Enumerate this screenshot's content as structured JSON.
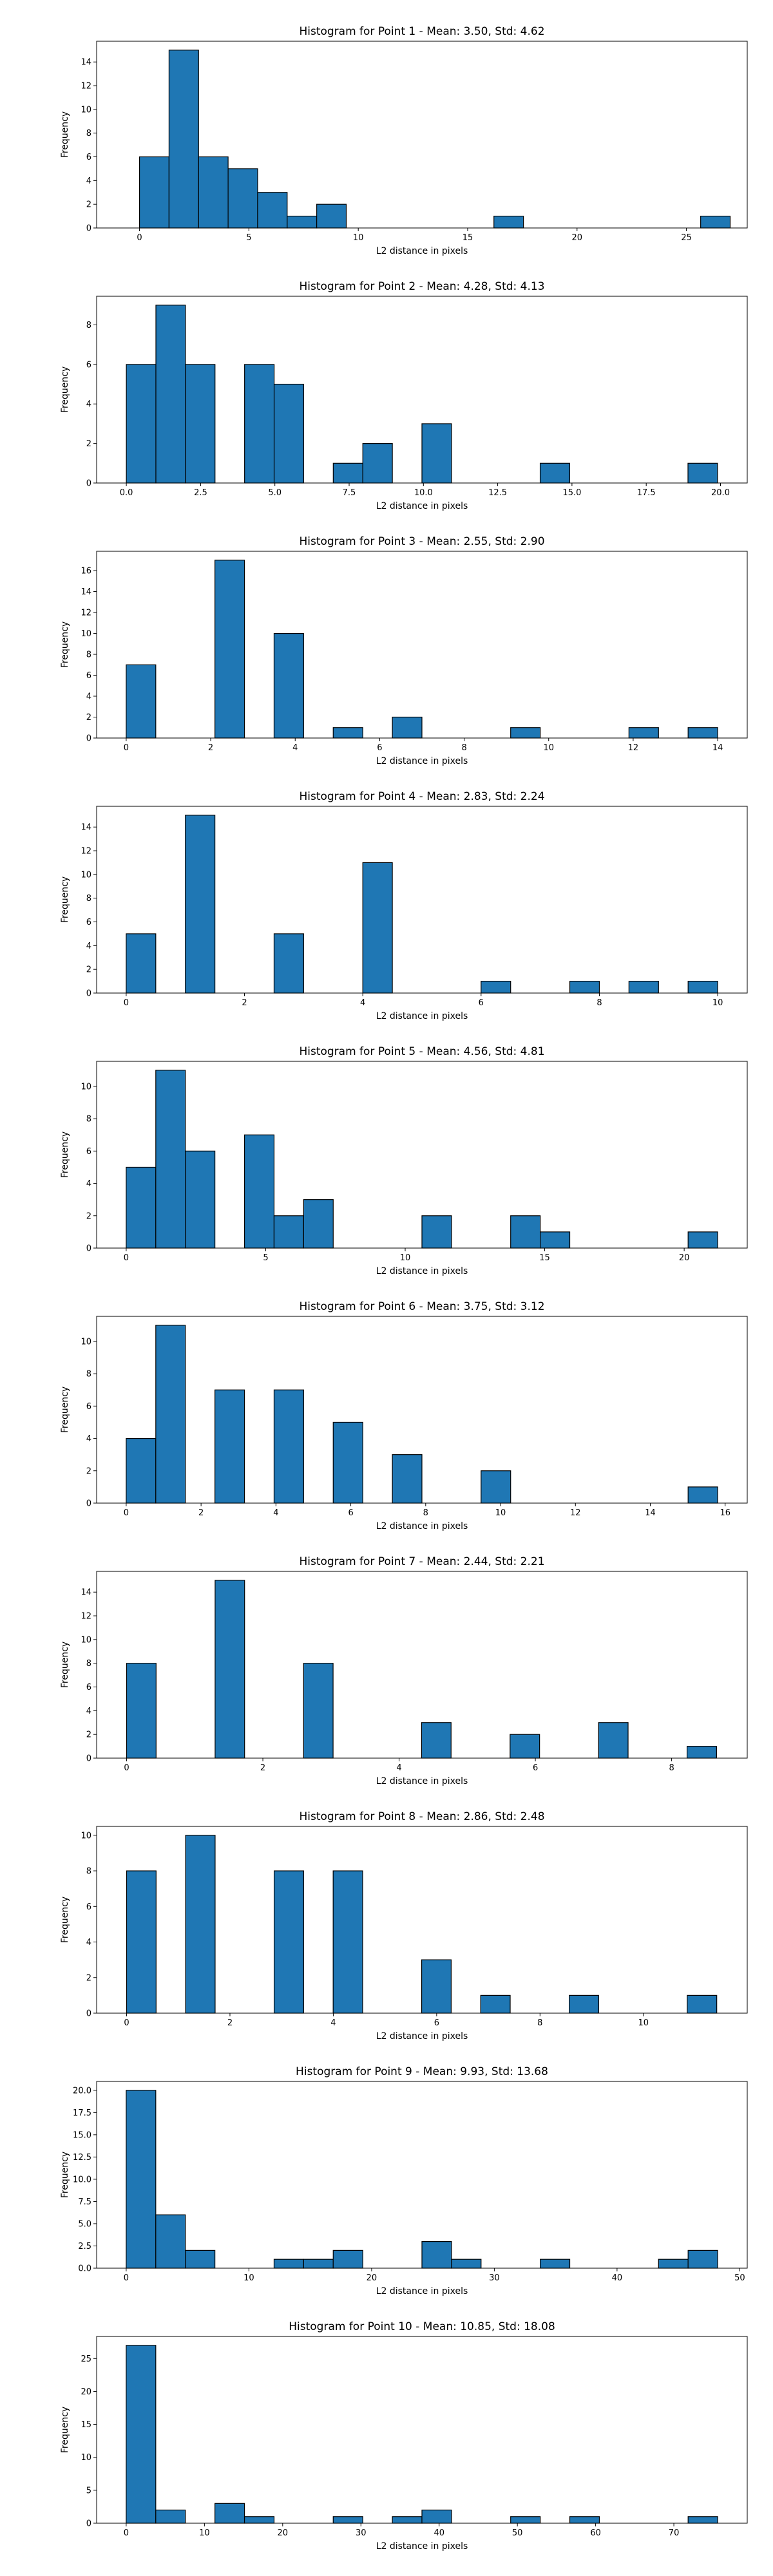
{
  "figure": {
    "background": "#ffffff",
    "bar_color": "#1f77b4",
    "edge_color": "#000000"
  },
  "chart_data": [
    {
      "type": "bar",
      "title": "Histogram for Point 1 - Mean: 3.50, Std: 4.62",
      "xlabel": "L2 distance in pixels",
      "ylabel": "Frequency",
      "xlim": [
        -1.96,
        27.78
      ],
      "ylim": [
        0,
        15.75
      ],
      "xticks": [
        0,
        5,
        10,
        15,
        20,
        25
      ],
      "xtick_labels": [
        "0",
        "5",
        "10",
        "15",
        "20",
        "25"
      ],
      "yticks": [
        0,
        2,
        4,
        6,
        8,
        10,
        12,
        14
      ],
      "bin_start": 0.0,
      "bin_width": 1.35,
      "counts": [
        6,
        15,
        6,
        5,
        3,
        1,
        2,
        0,
        0,
        0,
        0,
        0,
        1,
        0,
        0,
        0,
        0,
        0,
        0,
        1
      ]
    },
    {
      "type": "bar",
      "title": "Histogram for Point 2 - Mean: 4.28, Std: 4.13",
      "xlabel": "L2 distance in pixels",
      "ylabel": "Frequency",
      "xlim": [
        -1.0,
        20.9
      ],
      "ylim": [
        0,
        9.45
      ],
      "xticks": [
        0,
        2.5,
        5,
        7.5,
        10,
        12.5,
        15,
        17.5,
        20
      ],
      "xtick_labels": [
        "0.0",
        "2.5",
        "5.0",
        "7.5",
        "10.0",
        "12.5",
        "15.0",
        "17.5",
        "20.0"
      ],
      "yticks": [
        0,
        2,
        4,
        6,
        8
      ],
      "bin_start": 0.0,
      "bin_width": 0.995,
      "counts": [
        6,
        9,
        6,
        0,
        6,
        5,
        0,
        1,
        2,
        0,
        3,
        0,
        0,
        0,
        1,
        0,
        0,
        0,
        0,
        1
      ]
    },
    {
      "type": "bar",
      "title": "Histogram for Point 3 - Mean: 2.55, Std: 2.90",
      "xlabel": "L2 distance in pixels",
      "ylabel": "Frequency",
      "xlim": [
        -0.7,
        14.7
      ],
      "ylim": [
        0,
        17.85
      ],
      "xticks": [
        0,
        2,
        4,
        6,
        8,
        10,
        12,
        14
      ],
      "xtick_labels": [
        "0",
        "2",
        "4",
        "6",
        "8",
        "10",
        "12",
        "14"
      ],
      "yticks": [
        0,
        2,
        4,
        6,
        8,
        10,
        12,
        14,
        16
      ],
      "bin_start": 0.0,
      "bin_width": 0.7,
      "counts": [
        7,
        0,
        0,
        17,
        0,
        10,
        0,
        1,
        0,
        2,
        0,
        0,
        0,
        1,
        0,
        0,
        0,
        1,
        0,
        1
      ]
    },
    {
      "type": "bar",
      "title": "Histogram for Point 4 - Mean: 2.83, Std: 2.24",
      "xlabel": "L2 distance in pixels",
      "ylabel": "Frequency",
      "xlim": [
        -0.5,
        10.5
      ],
      "ylim": [
        0,
        15.75
      ],
      "xticks": [
        0,
        2,
        4,
        6,
        8,
        10
      ],
      "xtick_labels": [
        "0",
        "2",
        "4",
        "6",
        "8",
        "10"
      ],
      "yticks": [
        0,
        2,
        4,
        6,
        8,
        10,
        12,
        14
      ],
      "bin_start": 0.0,
      "bin_width": 0.5,
      "counts": [
        5,
        0,
        15,
        0,
        0,
        5,
        0,
        0,
        11,
        0,
        0,
        0,
        1,
        0,
        0,
        1,
        0,
        1,
        0,
        1
      ]
    },
    {
      "type": "bar",
      "title": "Histogram for Point 5 - Mean: 4.56, Std: 4.81",
      "xlabel": "L2 distance in pixels",
      "ylabel": "Frequency",
      "xlim": [
        -1.06,
        22.26
      ],
      "ylim": [
        0,
        11.55
      ],
      "xticks": [
        0,
        5,
        10,
        15,
        20
      ],
      "xtick_labels": [
        "0",
        "5",
        "10",
        "15",
        "20"
      ],
      "yticks": [
        0,
        2,
        4,
        6,
        8,
        10
      ],
      "bin_start": 0.0,
      "bin_width": 1.06,
      "counts": [
        5,
        11,
        6,
        0,
        7,
        2,
        3,
        0,
        0,
        0,
        2,
        0,
        0,
        2,
        1,
        0,
        0,
        0,
        0,
        1
      ]
    },
    {
      "type": "bar",
      "title": "Histogram for Point 6 - Mean: 3.75, Std: 3.12",
      "xlabel": "L2 distance in pixels",
      "ylabel": "Frequency",
      "xlim": [
        -0.79,
        16.59
      ],
      "ylim": [
        0,
        11.55
      ],
      "xticks": [
        0,
        2,
        4,
        6,
        8,
        10,
        12,
        14,
        16
      ],
      "xtick_labels": [
        "0",
        "2",
        "4",
        "6",
        "8",
        "10",
        "12",
        "14",
        "16"
      ],
      "yticks": [
        0,
        2,
        4,
        6,
        8,
        10
      ],
      "bin_start": 0.0,
      "bin_width": 0.79,
      "counts": [
        4,
        11,
        0,
        7,
        0,
        7,
        0,
        5,
        0,
        3,
        0,
        0,
        2,
        0,
        0,
        0,
        0,
        0,
        0,
        1
      ]
    },
    {
      "type": "bar",
      "title": "Histogram for Point 7 - Mean: 2.44, Std: 2.21",
      "xlabel": "L2 distance in pixels",
      "ylabel": "Frequency",
      "xlim": [
        -0.44,
        9.11
      ],
      "ylim": [
        0,
        15.75
      ],
      "xticks": [
        0,
        2,
        4,
        6,
        8
      ],
      "xtick_labels": [
        "0",
        "2",
        "4",
        "6",
        "8"
      ],
      "yticks": [
        0,
        2,
        4,
        6,
        8,
        10,
        12,
        14
      ],
      "bin_start": 0.0,
      "bin_width": 0.433,
      "counts": [
        8,
        0,
        0,
        15,
        0,
        0,
        8,
        0,
        0,
        0,
        3,
        0,
        0,
        2,
        0,
        0,
        3,
        0,
        0,
        1
      ]
    },
    {
      "type": "bar",
      "title": "Histogram for Point 8 - Mean: 2.86, Std: 2.48",
      "xlabel": "L2 distance in pixels",
      "ylabel": "Frequency",
      "xlim": [
        -0.58,
        12.01
      ],
      "ylim": [
        0,
        10.5
      ],
      "xticks": [
        0,
        2,
        4,
        6,
        8,
        10
      ],
      "xtick_labels": [
        "0",
        "2",
        "4",
        "6",
        "8",
        "10"
      ],
      "yticks": [
        0,
        2,
        4,
        6,
        8,
        10
      ],
      "bin_start": 0.0,
      "bin_width": 0.571,
      "counts": [
        8,
        0,
        10,
        0,
        0,
        8,
        0,
        8,
        0,
        0,
        3,
        0,
        1,
        0,
        0,
        1,
        0,
        0,
        0,
        1
      ]
    },
    {
      "type": "bar",
      "title": "Histogram for Point 9 - Mean: 9.93, Std: 13.68",
      "xlabel": "L2 distance in pixels",
      "ylabel": "Frequency",
      "xlim": [
        -2.41,
        50.61
      ],
      "ylim": [
        0,
        21.0
      ],
      "xticks": [
        0,
        10,
        20,
        30,
        40,
        50
      ],
      "xtick_labels": [
        "0",
        "10",
        "20",
        "30",
        "40",
        "50"
      ],
      "yticks": [
        0,
        2.5,
        5,
        7.5,
        10,
        12.5,
        15,
        17.5,
        20
      ],
      "ytick_labels": [
        "0.0",
        "2.5",
        "5.0",
        "7.5",
        "10.0",
        "12.5",
        "15.0",
        "17.5",
        "20.0"
      ],
      "bin_start": 0.0,
      "bin_width": 2.41,
      "counts": [
        20,
        6,
        2,
        0,
        0,
        1,
        1,
        2,
        0,
        0,
        3,
        1,
        0,
        0,
        1,
        0,
        0,
        0,
        1,
        2
      ]
    },
    {
      "type": "bar",
      "title": "Histogram for Point 10 - Mean: 10.85, Std: 18.08",
      "xlabel": "L2 distance in pixels",
      "ylabel": "Frequency",
      "xlim": [
        -3.78,
        79.38
      ],
      "ylim": [
        0,
        28.35
      ],
      "xticks": [
        0,
        10,
        20,
        30,
        40,
        50,
        60,
        70
      ],
      "xtick_labels": [
        "0",
        "10",
        "20",
        "30",
        "40",
        "50",
        "60",
        "70"
      ],
      "yticks": [
        0,
        5,
        10,
        15,
        20,
        25
      ],
      "bin_start": 0.0,
      "bin_width": 3.78,
      "counts": [
        27,
        2,
        0,
        3,
        1,
        0,
        0,
        1,
        0,
        1,
        2,
        0,
        0,
        1,
        0,
        1,
        0,
        0,
        0,
        1
      ]
    }
  ]
}
